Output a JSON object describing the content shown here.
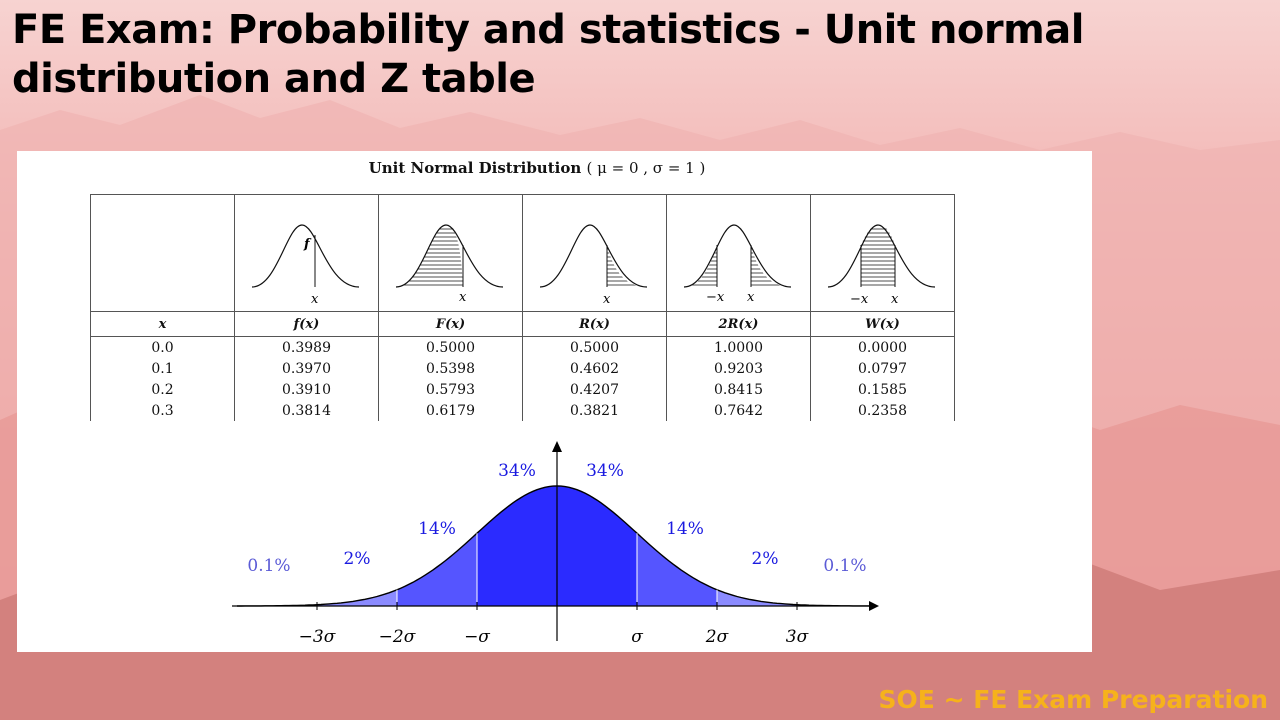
{
  "slide": {
    "title": "FE Exam: Probability and statistics - Unit normal distribution and Z table",
    "footer": "SOE ~ FE Exam Preparation"
  },
  "table": {
    "title": "Unit Normal Distribution",
    "params": "( μ = 0 ,   σ = 1 )",
    "columns": [
      "x",
      "f(x)",
      "F(x)",
      "R(x)",
      "2R(x)",
      "W(x)"
    ],
    "icon_labels": {
      "f": "f",
      "x": "x",
      "neg_x": "−x"
    },
    "rows": [
      [
        "0.0",
        "0.3989",
        "0.5000",
        "0.5000",
        "1.0000",
        "0.0000"
      ],
      [
        "0.1",
        "0.3970",
        "0.5398",
        "0.4602",
        "0.9203",
        "0.0797"
      ],
      [
        "0.2",
        "0.3910",
        "0.5793",
        "0.4207",
        "0.8415",
        "0.1585"
      ],
      [
        "0.3",
        "0.3814",
        "0.6179",
        "0.3821",
        "0.7642",
        "0.2358"
      ]
    ]
  },
  "bell_chart": {
    "fill_color": "#2b2bff",
    "label_colors": {
      "inner": "#1a1ae0",
      "outer": "#5b5bd6"
    },
    "percent_labels": [
      "0.1%",
      "2%",
      "14%",
      "34%",
      "34%",
      "14%",
      "2%",
      "0.1%"
    ],
    "sigma_labels": [
      "−3σ",
      "−2σ",
      "−σ",
      "σ",
      "2σ",
      "3σ"
    ]
  }
}
